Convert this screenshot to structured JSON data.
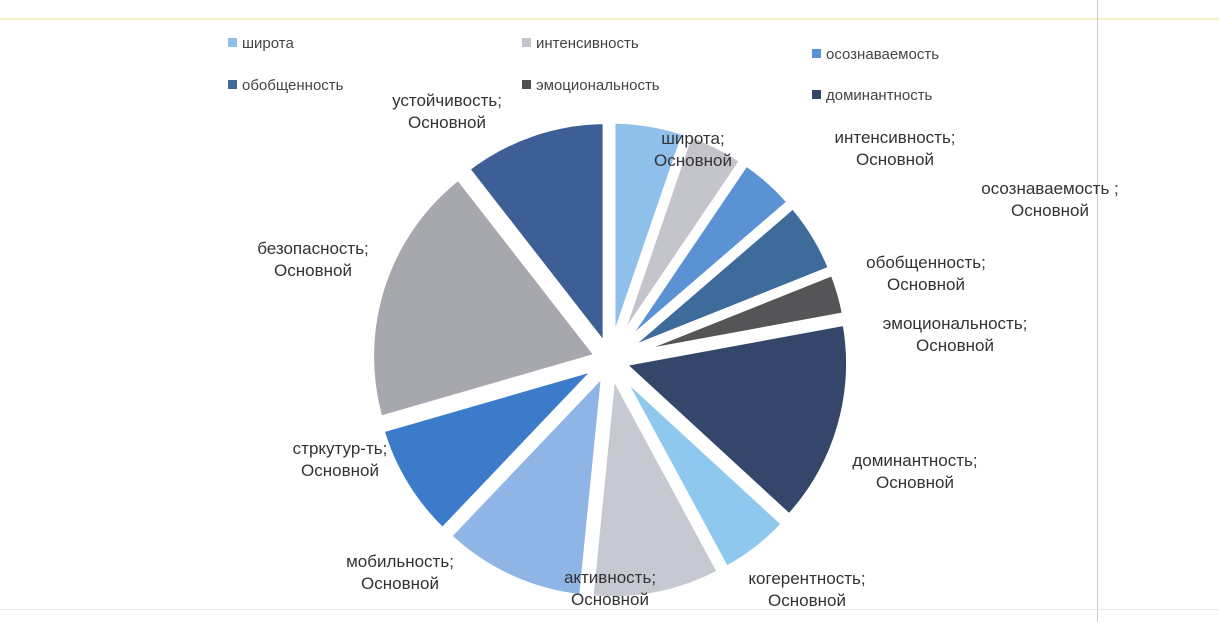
{
  "chart_data": {
    "type": "pie",
    "series_name": "Основной",
    "legend": [
      {
        "name": "широта",
        "color": "#8fc0ea"
      },
      {
        "name": "интенсивность",
        "color": "#c4c4cc"
      },
      {
        "name": "осознаваемость",
        "color": "#5b92d4"
      },
      {
        "name": "обобщенность",
        "color": "#3e6a9c"
      },
      {
        "name": "эмоциональность",
        "color": "#505050"
      },
      {
        "name": "доминантность",
        "color": "#34466a"
      }
    ],
    "slices": [
      {
        "label": "широта",
        "value": 5,
        "color": "#8fc0ea",
        "label_text": "широта; Основной"
      },
      {
        "label": "интенсивность",
        "value": 4,
        "color": "#c4c4cc",
        "label_text": "интенсивность; Основной"
      },
      {
        "label": "осознаваемость",
        "value": 4,
        "color": "#5b92d4",
        "label_text": "осознаваемость ; Основной"
      },
      {
        "label": "обобщенность",
        "value": 5,
        "color": "#3e6a9c",
        "label_text": "обобщенность; Основной"
      },
      {
        "label": "эмоциональность",
        "value": 3,
        "color": "#555558",
        "label_text": "эмоциональность; Основной"
      },
      {
        "label": "доминантность",
        "value": 14,
        "color": "#34466a",
        "label_text": "доминантность; Основной"
      },
      {
        "label": "когерентность",
        "value": 5,
        "color": "#8fc8ee",
        "label_text": "когерентность; Основной"
      },
      {
        "label": "активность",
        "value": 9,
        "color": "#c7c9d2",
        "label_text": "активность; Основной"
      },
      {
        "label": "мобильность",
        "value": 10,
        "color": "#8fb4e6",
        "label_text": "мобильность; Основной"
      },
      {
        "label": "стркутур-ть",
        "value": 8,
        "color": "#3c7bc9",
        "label_text": "стркутур-ть; Основной"
      },
      {
        "label": "безопасность",
        "value": 18,
        "color": "#a7a7ae",
        "label_text": "безопасность; Основной"
      },
      {
        "label": "устойчивость",
        "value": 10,
        "color": "#3e5e96",
        "label_text": "устойчивость; Основной"
      }
    ]
  }
}
